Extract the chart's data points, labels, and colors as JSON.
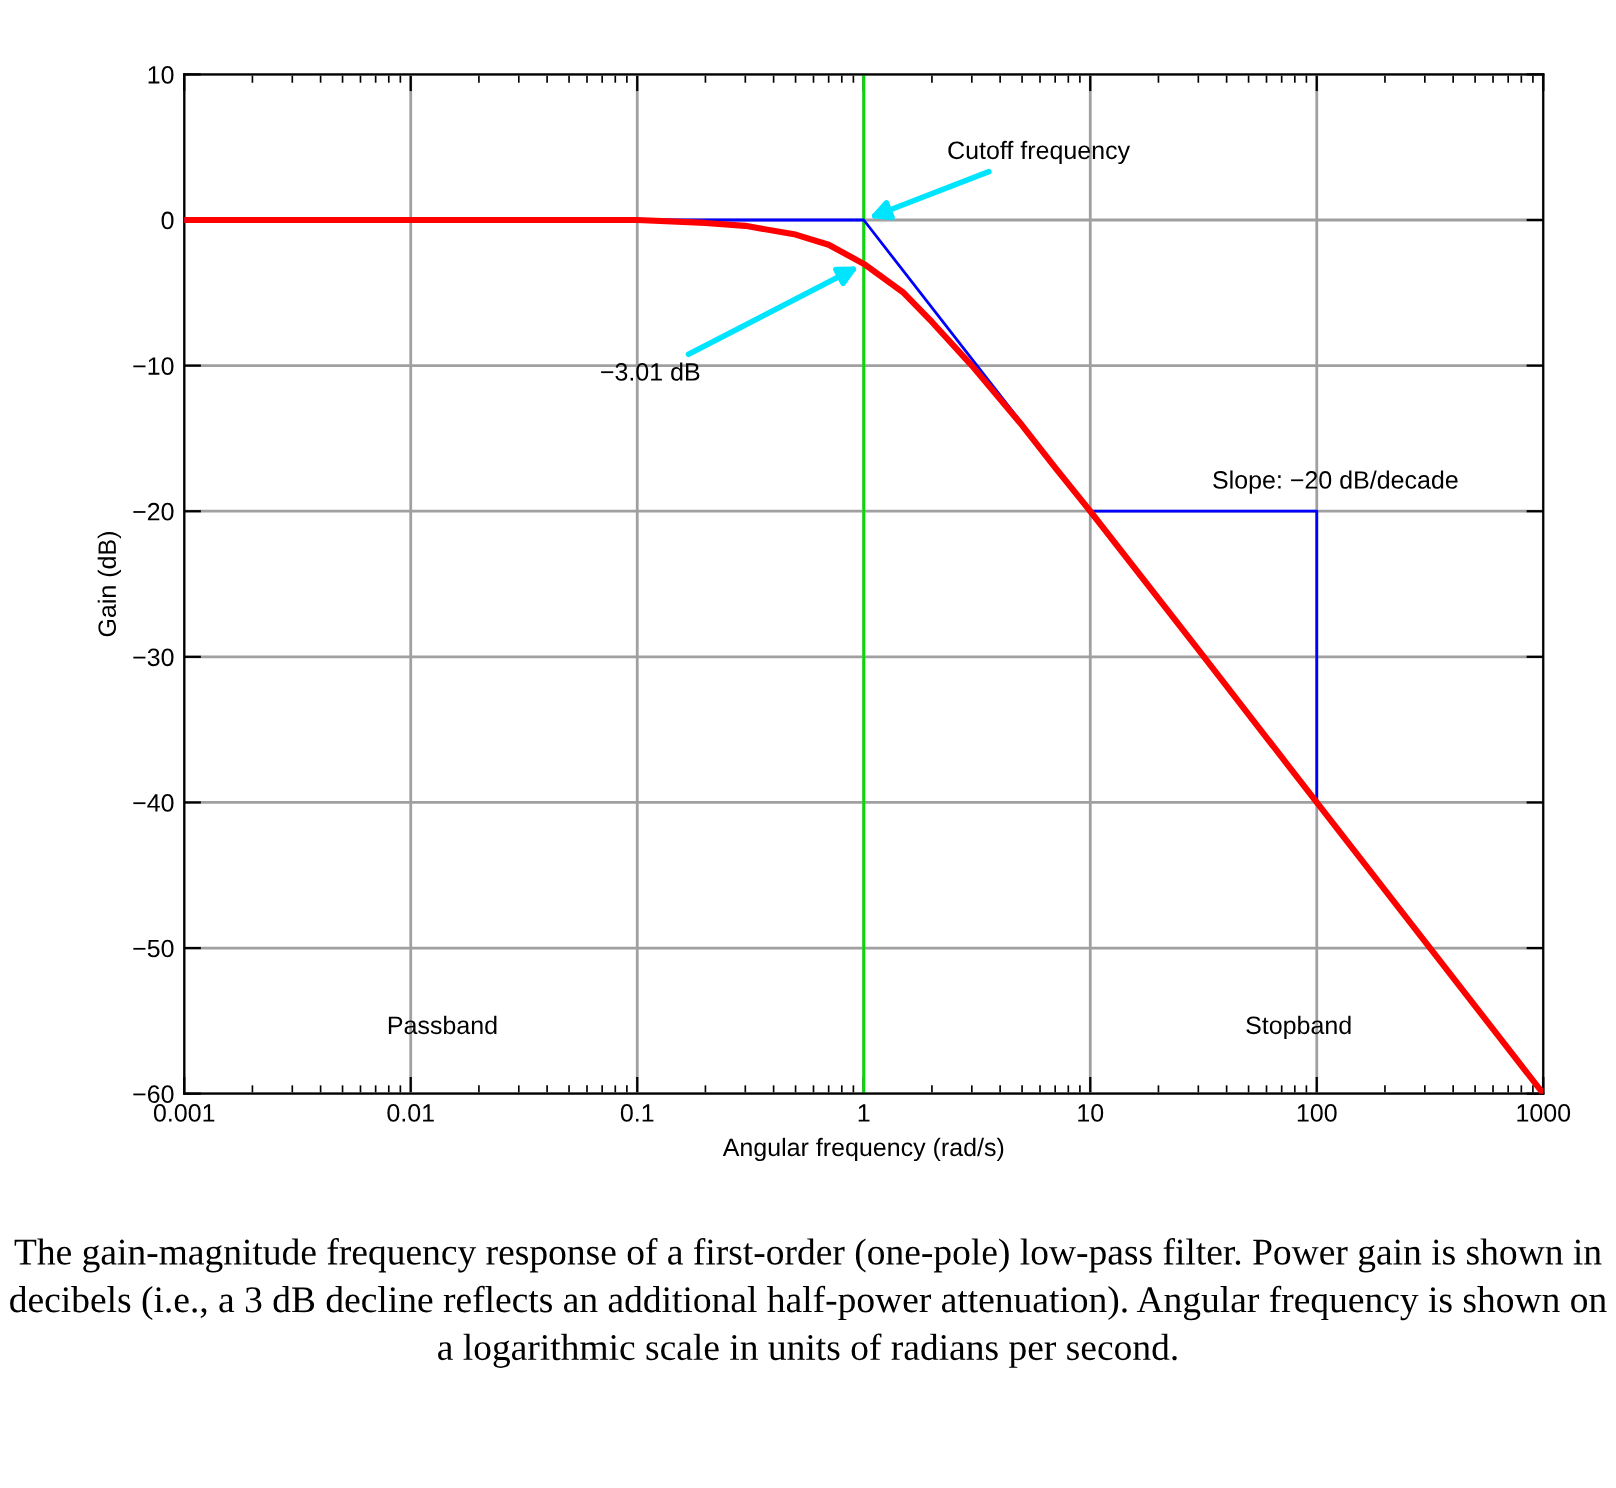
{
  "chart_data": {
    "type": "line",
    "xlabel": "Angular frequency (rad/s)",
    "ylabel": "Gain (dB)",
    "log": "x",
    "xlim": [
      0.001,
      1000
    ],
    "xticks": [
      0.001,
      0.01,
      0.1,
      1,
      10,
      100,
      1000
    ],
    "ylim": [
      -60,
      10
    ],
    "yticks": [
      {
        "value": -60,
        "label": "−60"
      },
      {
        "value": -50,
        "label": "−50"
      },
      {
        "value": -40,
        "label": "−40"
      },
      {
        "value": -30,
        "label": "−30"
      },
      {
        "value": -20,
        "label": "−20"
      },
      {
        "value": -10,
        "label": "−10"
      },
      0,
      10
    ],
    "grid": true,
    "marker": "none",
    "line_style": "solid",
    "series": [
      {
        "color": "#0000ff",
        "x": [
          0.001,
          1,
          10,
          100,
          100
        ],
        "values": [
          0,
          0,
          -20,
          -20,
          -40
        ]
      },
      {
        "color": "#ff0000",
        "x": [
          0.001,
          0.01,
          0.1,
          0.2,
          0.3,
          0.5,
          0.7,
          1,
          1.5,
          2,
          3,
          5,
          7,
          10,
          30,
          100,
          1000
        ],
        "values": [
          0,
          0,
          0,
          -0.2,
          -0.4,
          -1,
          -1.7,
          -3.01,
          -5,
          -7,
          -10,
          -14.1,
          -17,
          -20,
          -29.5,
          -40,
          -60
        ]
      }
    ],
    "ref_lines": [
      {
        "axis": "x",
        "value": 1,
        "color": "#00dd00"
      }
    ],
    "annotations": [
      {
        "text": "Cutoff frequency",
        "x": 1,
        "y": 0
      },
      {
        "text": "−3.01 dB",
        "x": 1,
        "y": -3.01
      },
      "Slope: −20 dB/decade",
      "Passband",
      "Stopband",
      "The gain-magnitude frequency response of a first-order (one-pole) low-pass filter. Power gain is shown in decibels (i.e., a 3 dB decline reflects an additional half-power attenuation). Angular frequency is shown on a logarithmic scale in units of radians per second."
    ]
  }
}
